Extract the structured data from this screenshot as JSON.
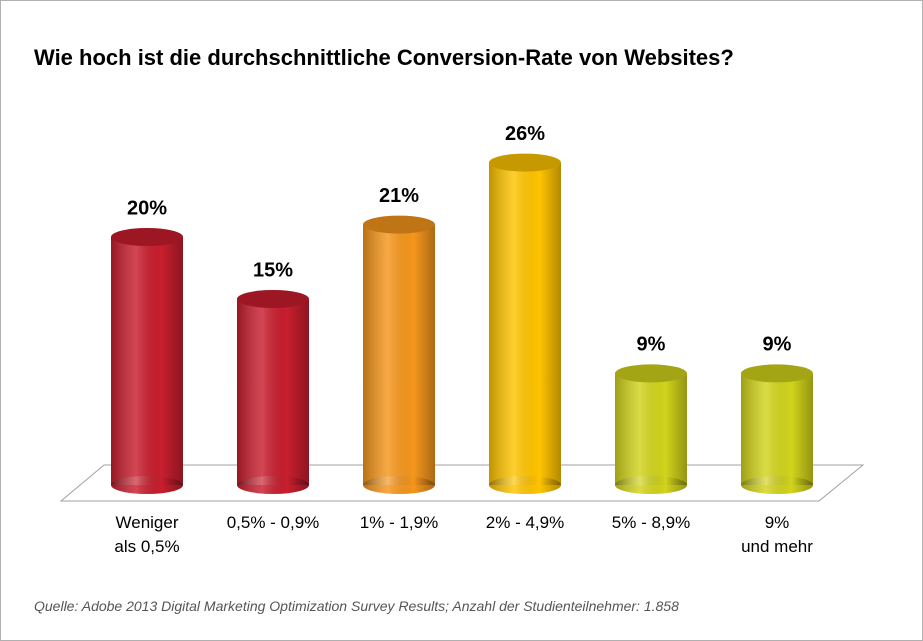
{
  "chart_data": {
    "type": "bar3d",
    "title": "Wie hoch ist die durchschnittliche Conversion-Rate von Websites?",
    "categories": [
      "Weniger\nals 0,5%",
      "0,5% - 0,9%",
      "1% - 1,9%",
      "2% - 4,9%",
      "5% - 8,9%",
      "9%\nund mehr"
    ],
    "values": [
      20,
      15,
      21,
      26,
      9,
      9
    ],
    "value_labels": [
      "20%",
      "15%",
      "21%",
      "26%",
      "9%",
      "9%"
    ],
    "colors": [
      "#c81e2e",
      "#c81e2e",
      "#f5961c",
      "#ffc400",
      "#d2d41c",
      "#d2d41c"
    ],
    "ylim": [
      0,
      30
    ],
    "source": "Quelle: Adobe 2013 Digital Marketing Optimization Survey Results;  Anzahl der Studienteilnehmer: 1.858"
  }
}
